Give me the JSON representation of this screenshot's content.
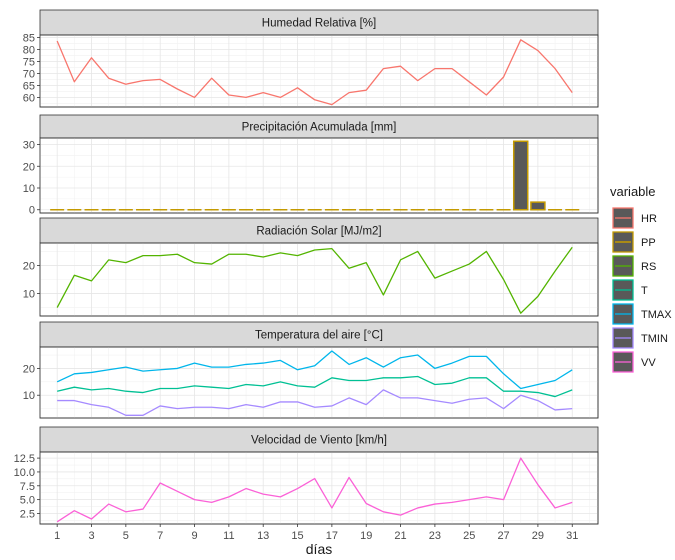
{
  "chart_data": {
    "type": "line",
    "xlabel": "días",
    "x": [
      1,
      2,
      3,
      4,
      5,
      6,
      7,
      8,
      9,
      10,
      11,
      12,
      13,
      14,
      15,
      16,
      17,
      18,
      19,
      20,
      21,
      22,
      23,
      24,
      25,
      26,
      27,
      28,
      29,
      30,
      31
    ],
    "x_ticks": [
      "1",
      "3",
      "5",
      "7",
      "9",
      "11",
      "13",
      "15",
      "17",
      "19",
      "21",
      "23",
      "25",
      "27",
      "29",
      "31"
    ],
    "legend": {
      "title": "variable",
      "position": "right",
      "entries": [
        {
          "key": "HR",
          "label": "HR",
          "color": "#F8766D"
        },
        {
          "key": "PP",
          "label": "PP",
          "color": "#C49A00"
        },
        {
          "key": "RS",
          "label": "RS",
          "color": "#53B400"
        },
        {
          "key": "T",
          "label": "T",
          "color": "#00C094"
        },
        {
          "key": "TMAX",
          "label": "TMAX",
          "color": "#00B6EB"
        },
        {
          "key": "TMIN",
          "label": "TMIN",
          "color": "#A58AFF"
        },
        {
          "key": "VV",
          "label": "VV",
          "color": "#FB61D7"
        }
      ]
    },
    "panels": [
      {
        "title": "Humedad Relativa [%]",
        "ylim": [
          56,
          86
        ],
        "yticks": [
          60,
          65,
          70,
          75,
          80,
          85
        ],
        "series": [
          {
            "name": "HR",
            "color": "#F8766D",
            "type": "line",
            "values": [
              83.5,
              66.5,
              76.5,
              68,
              65.5,
              67,
              67.5,
              63.5,
              60,
              68,
              61,
              60,
              62,
              60,
              64,
              59,
              57,
              62,
              63,
              72,
              73,
              67,
              72,
              72,
              66.5,
              61,
              68.5,
              84,
              79.5,
              72,
              62
            ]
          }
        ]
      },
      {
        "title": "Precipitación Acumulada [mm]",
        "ylim": [
          -1.5,
          33
        ],
        "yticks": [
          0,
          10,
          20,
          30
        ],
        "series": [
          {
            "name": "PP",
            "color": "#C49A00",
            "type": "bar",
            "values": [
              0,
              0,
              0,
              0,
              0,
              0,
              0,
              0,
              0,
              0,
              0,
              0,
              0,
              0,
              0,
              0,
              0,
              0,
              0,
              0,
              0,
              0,
              0,
              0,
              0,
              0,
              0,
              31.5,
              3.5,
              0,
              0
            ]
          }
        ]
      },
      {
        "title": "Radiación Solar [MJ/m2]",
        "ylim": [
          2,
          28
        ],
        "yticks": [
          10,
          20
        ],
        "series": [
          {
            "name": "RS",
            "color": "#53B400",
            "type": "line",
            "values": [
              5,
              16.5,
              14.5,
              22,
              21,
              23.5,
              23.5,
              24,
              21,
              20.5,
              24,
              24,
              23,
              24.5,
              23.5,
              25.5,
              26,
              19,
              21,
              9.5,
              22,
              25,
              15.5,
              18,
              20.5,
              25,
              15,
              3,
              9,
              18,
              26.5
            ]
          }
        ]
      },
      {
        "title": "Temperatura del aire [°C]",
        "ylim": [
          1.5,
          28
        ],
        "yticks": [
          10,
          20
        ],
        "series": [
          {
            "name": "T",
            "color": "#00C094",
            "type": "line",
            "values": [
              11.5,
              13,
              12,
              12.5,
              11.5,
              11,
              12.5,
              12.5,
              13.5,
              13,
              12.5,
              14,
              13.5,
              15,
              13.5,
              13,
              16.5,
              15.5,
              15.5,
              16.5,
              16.5,
              17,
              14,
              14.5,
              16.5,
              16.5,
              11.5,
              11.5,
              11,
              9.5,
              12
            ]
          },
          {
            "name": "TMAX",
            "color": "#00B6EB",
            "type": "line",
            "values": [
              15,
              18,
              18.5,
              19.5,
              20.5,
              19,
              19.5,
              20,
              22,
              20.5,
              20.5,
              21.5,
              22,
              23,
              19.5,
              21,
              26.5,
              21.5,
              24,
              20.5,
              24,
              25,
              20,
              22,
              24.5,
              24.5,
              18,
              12.5,
              14,
              15.5,
              19.5
            ]
          },
          {
            "name": "TMIN",
            "color": "#A58AFF",
            "type": "line",
            "values": [
              8,
              8,
              6.5,
              5.5,
              2.5,
              2.5,
              6,
              5,
              5.5,
              5.5,
              5,
              6.5,
              5.5,
              7.5,
              7.5,
              5.5,
              6,
              9,
              6.5,
              12,
              9,
              9,
              8,
              7,
              8.5,
              9,
              5,
              10,
              8,
              4.5,
              5
            ]
          }
        ]
      },
      {
        "title": "Velocidad de Viento [km/h]",
        "ylim": [
          0.6,
          13.6
        ],
        "yticks": [
          2.5,
          5.0,
          7.5,
          10.0,
          12.5
        ],
        "ytick_labels": [
          "2.5",
          "5.0",
          "7.5",
          "10.0",
          "12.5"
        ],
        "series": [
          {
            "name": "VV",
            "color": "#FB61D7",
            "type": "line",
            "values": [
              1,
              3,
              1.5,
              4.2,
              2.8,
              3.3,
              8,
              6.5,
              5,
              4.5,
              5.5,
              7,
              6,
              5.5,
              7,
              8.8,
              3.5,
              9,
              4.3,
              2.8,
              2.2,
              3.5,
              4.2,
              4.5,
              5,
              5.5,
              5,
              12.5,
              7.7,
              3.5,
              4.5
            ]
          }
        ]
      }
    ]
  }
}
